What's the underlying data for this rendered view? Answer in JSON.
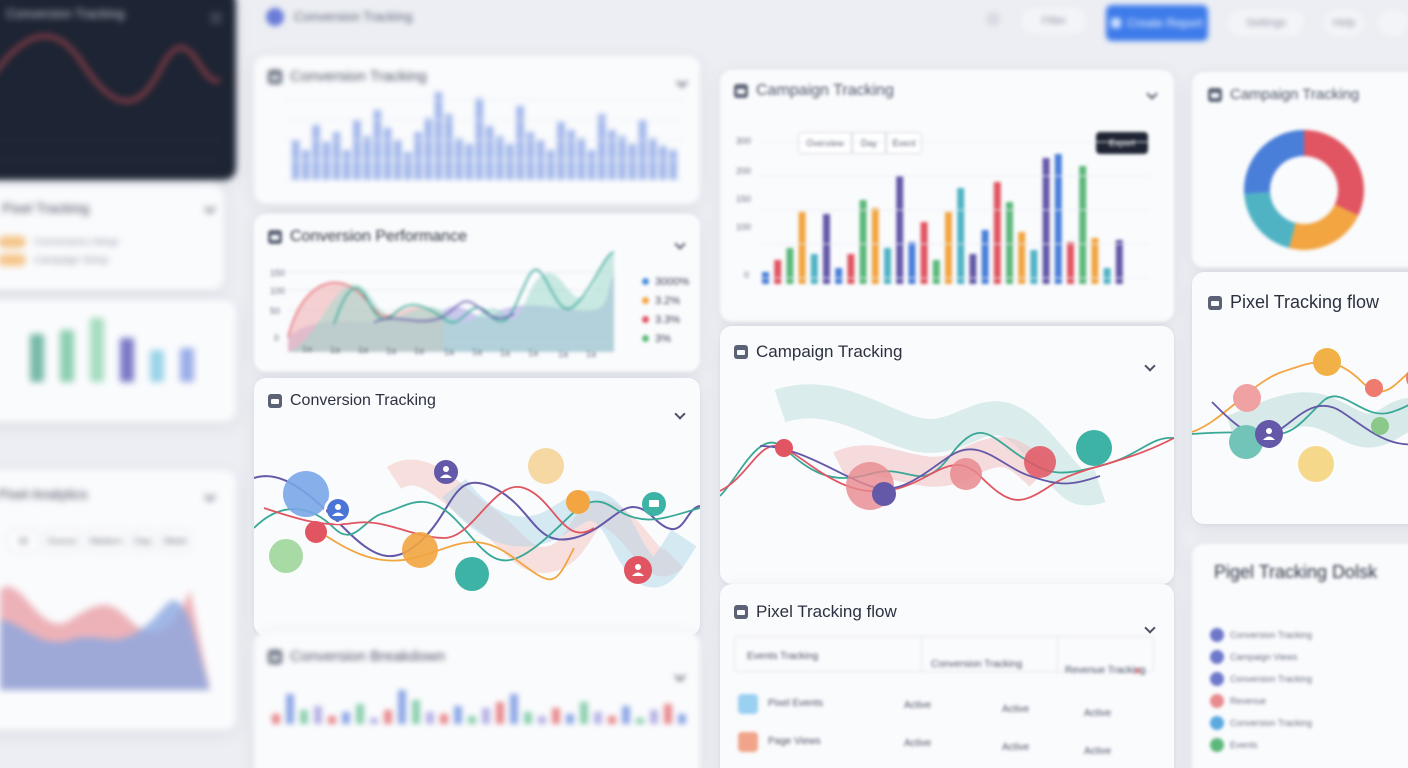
{
  "header": {
    "title": "Conversion Tracking",
    "primary_button": "Create Report",
    "pill_1": "Filter",
    "pill_2": "Settings",
    "pill_3": "Help"
  },
  "cards": {
    "left_dark": {
      "title": "Conversion Tracking"
    },
    "left_list": {
      "title": "Pixel Tracking",
      "items": [
        "Conversions Setup",
        "Campaign Setup"
      ]
    },
    "left_area": {
      "title": "Pixel Analytics",
      "filters": [
        "All",
        "Source",
        "Medium",
        "Day",
        "Week",
        "Mo"
      ]
    },
    "top_bars": {
      "title": "Conversion Tracking"
    },
    "performance": {
      "title": "Conversion Performance",
      "y_ticks": [
        "150",
        "100",
        "50",
        "0"
      ],
      "x_ticks": [
        "1a",
        "1a",
        "1a",
        "1a",
        "1a",
        "1a",
        "1a",
        "1a",
        "1a",
        "1a",
        "1a"
      ],
      "legend": [
        {
          "label": "3000%",
          "color": "#4a90d9"
        },
        {
          "label": "3.2%",
          "color": "#f2a541"
        },
        {
          "label": "3.3%",
          "color": "#e05561"
        },
        {
          "label": "3%",
          "color": "#5cb87a"
        }
      ]
    },
    "flow_left": {
      "title": "Conversion Tracking"
    },
    "bottom_left": {
      "title": "Conversion Breakdown"
    },
    "campaign_bars": {
      "title": "Campaign Tracking",
      "tabs": [
        "Overview",
        "Day",
        "Event"
      ],
      "button": "Export",
      "y_ticks": [
        "300",
        "200",
        "150",
        "100",
        "0"
      ]
    },
    "campaign_flow": {
      "title": "Campaign Tracking"
    },
    "pixel_flow_table": {
      "title": "Pixel Tracking flow",
      "columns": [
        "Events Tracking",
        "Conversion Tracking",
        "Revenue Tracking"
      ],
      "rows": [
        {
          "name": "Pixel Events",
          "a": "Active",
          "b": "Active",
          "c": "Active"
        },
        {
          "name": "Page Views",
          "a": "Active",
          "b": "Active",
          "c": "Active"
        }
      ]
    },
    "donut": {
      "title": "Campaign Tracking",
      "segments": [
        {
          "value": 32,
          "color": "#e05561"
        },
        {
          "value": 22,
          "color": "#f2a541"
        },
        {
          "value": 20,
          "color": "#4fb3c4"
        },
        {
          "value": 26,
          "color": "#4a7fd9"
        }
      ]
    },
    "pixel_flow_right": {
      "title": "Pixel Tracking flow"
    },
    "pixel_block": {
      "title": "Pigel Tracking Dolsk",
      "items": [
        {
          "label": "Conversion Tracking",
          "color": "#6e78c9"
        },
        {
          "label": "Campaign Views",
          "color": "#6e78c9"
        },
        {
          "label": "Conversion Tracking",
          "color": "#6e78c9"
        },
        {
          "label": "Revenue",
          "color": "#e88a8e"
        },
        {
          "label": "Conversion Tracking",
          "color": "#5aa9e0"
        },
        {
          "label": "Events",
          "color": "#5cb87a"
        }
      ]
    }
  },
  "colors": {
    "accent": "#3d7bea",
    "blue": "#4a7fd9",
    "red": "#e05561",
    "green": "#5cb87a",
    "orange": "#f2a541",
    "teal": "#3cab9b",
    "purple": "#6458a8"
  }
}
